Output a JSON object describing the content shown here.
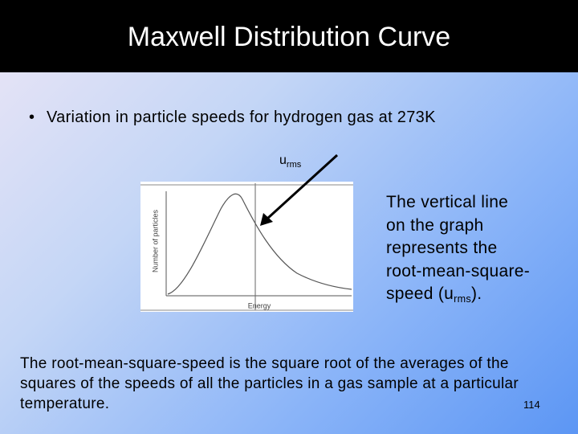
{
  "header": {
    "title": "Maxwell Distribution Curve"
  },
  "bullet": "Variation in particle speeds for hydrogen gas at 273K",
  "figure": {
    "callout": {
      "base": "u",
      "subscript": "rms"
    },
    "y_axis_label": "Number of particles",
    "x_axis_label": "Energy"
  },
  "side_text": {
    "text": "The vertical line on the graph represents the root-mean-square-speed (u",
    "subscript": "rms",
    "tail": ")."
  },
  "body": "The root-mean-square-speed is the square root of the averages of the squares of the speeds of all the particles in a gas sample at a particular temperature.",
  "page_number": "114"
}
